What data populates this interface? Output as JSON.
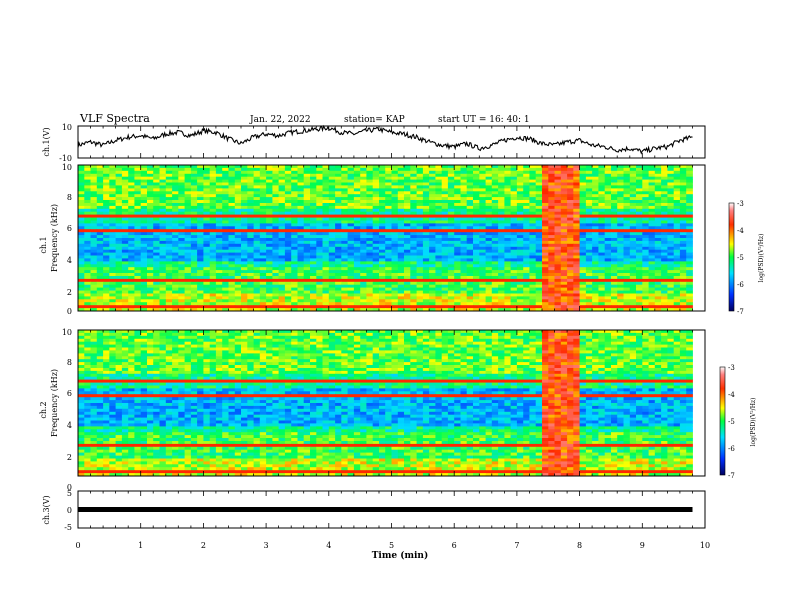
{
  "header": {
    "title": "VLF Spectra",
    "date": "Jan. 22, 2022",
    "station": "station= KAP",
    "start": "start  UT =   16: 40: 1"
  },
  "chart_data": [
    {
      "type": "line",
      "name": "ch1-voltage",
      "ylabel": "ch.1(V)",
      "xlim": [
        0,
        10
      ],
      "ylim": [
        -10,
        10
      ],
      "yticks": [
        "10",
        "-10"
      ],
      "x": [
        0,
        0.2,
        0.4,
        0.6,
        0.8,
        1.0,
        1.2,
        1.4,
        1.6,
        1.8,
        2.0,
        2.2,
        2.4,
        2.6,
        2.8,
        3.0,
        3.2,
        3.4,
        3.6,
        3.8,
        4.0,
        4.2,
        4.4,
        4.6,
        4.8,
        5.0,
        5.2,
        5.4,
        5.6,
        5.8,
        6.0,
        6.2,
        6.4,
        6.6,
        6.8,
        7.0,
        7.2,
        7.4,
        7.6,
        7.8,
        8.0,
        8.2,
        8.4,
        8.6,
        8.8,
        9.0,
        9.2,
        9.4,
        9.6,
        9.8
      ],
      "y": [
        -2,
        0,
        -2,
        1,
        3,
        4,
        2,
        5,
        6,
        4,
        7,
        6,
        2,
        -1,
        3,
        5,
        4,
        6,
        7,
        8,
        9,
        6,
        5,
        7,
        8,
        6,
        5,
        3,
        0,
        -2,
        -3,
        -1,
        -4,
        -2,
        1,
        3,
        2,
        -1,
        -2,
        0,
        1,
        -2,
        -3,
        -5,
        -4,
        -6,
        -4,
        -3,
        1,
        3
      ]
    },
    {
      "type": "heatmap",
      "name": "ch1-spectrogram",
      "ylabel_line1": "ch.1",
      "ylabel_line2": "Frequency (kHz)",
      "xlim": [
        0,
        9.8
      ],
      "ylim": [
        0,
        10
      ],
      "yticks": [
        "0",
        "2",
        "4",
        "6",
        "8",
        "10"
      ],
      "colorbar": {
        "label": "log(PSD)(V²/Hz)",
        "min": -7,
        "max": -3,
        "ticks": [
          "-7",
          "-6",
          "-5",
          "-4",
          "-3"
        ]
      },
      "burst_x": [
        7.4,
        7.95
      ]
    },
    {
      "type": "heatmap",
      "name": "ch2-spectrogram",
      "ylabel_line1": "ch.2",
      "ylabel_line2": "Frequency (kHz)",
      "xlim": [
        0,
        9.8
      ],
      "ylim": [
        0,
        10
      ],
      "yticks": [
        "0",
        "2",
        "4",
        "6",
        "8",
        "10"
      ],
      "colorbar": {
        "label": "log(PSD)(V²/Hz)",
        "min": -7,
        "max": -3,
        "ticks": [
          "-7",
          "-6",
          "-5",
          "-4",
          "-3"
        ]
      },
      "burst_x": [
        7.4,
        7.95
      ]
    },
    {
      "type": "line",
      "name": "ch3-voltage",
      "ylabel": "ch.3(V)",
      "xlim": [
        0,
        10
      ],
      "ylim": [
        -5,
        5
      ],
      "yticks": [
        "5",
        "0",
        "-5"
      ],
      "x": [
        0,
        9.8
      ],
      "y": [
        0,
        0
      ]
    }
  ],
  "xaxis": {
    "label": "Time  (min)",
    "ticks": [
      "0",
      "1",
      "2",
      "3",
      "4",
      "5",
      "6",
      "7",
      "8",
      "9",
      "10"
    ]
  },
  "colors": {
    "trace": "#000000",
    "colormap": [
      "#00007a",
      "#0050ff",
      "#00d0ff",
      "#00ff80",
      "#ffff00",
      "#ff8000",
      "#ff0000",
      "#ffffff"
    ]
  }
}
